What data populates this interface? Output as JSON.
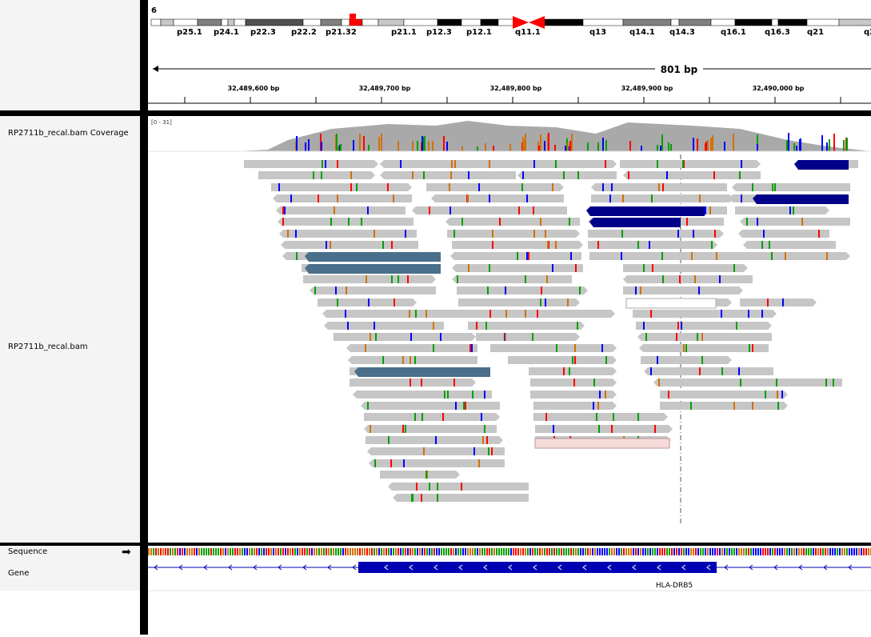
{
  "chromosome": {
    "name": "6",
    "bands": [
      "p25.1",
      "p24.1",
      "p22.3",
      "p22.2",
      "p21.32",
      "p21.1",
      "p12.3",
      "p12.1",
      "q11.1",
      "q13",
      "q14.1",
      "q14.3",
      "q16.1",
      "q16.3",
      "q21",
      "q2"
    ]
  },
  "ruler": {
    "span_label": "801 bp",
    "ticks": [
      "32,489,600 bp",
      "32,489,700 bp",
      "32,489,800 bp",
      "32,489,900 bp",
      "32,490,000 bp"
    ]
  },
  "tracks": {
    "coverage_name": "RP2711b_recal.bam Coverage",
    "coverage_range": "[0 - 31]",
    "alignment_name": "RP2711b_recal.bam",
    "sequence_name": "Sequence",
    "gene_name": "Gene"
  },
  "gene": {
    "label": "HLA-DRB5"
  },
  "colors": {
    "read": "#c6c6c6",
    "mismatch_a": "#00a000",
    "mismatch_c": "#0000ff",
    "mismatch_g": "#d17105",
    "mismatch_t": "#ff0000",
    "gene": "#0000b3",
    "highlight_dark": "#000088",
    "highlight_steel": "#4a6f8a"
  }
}
